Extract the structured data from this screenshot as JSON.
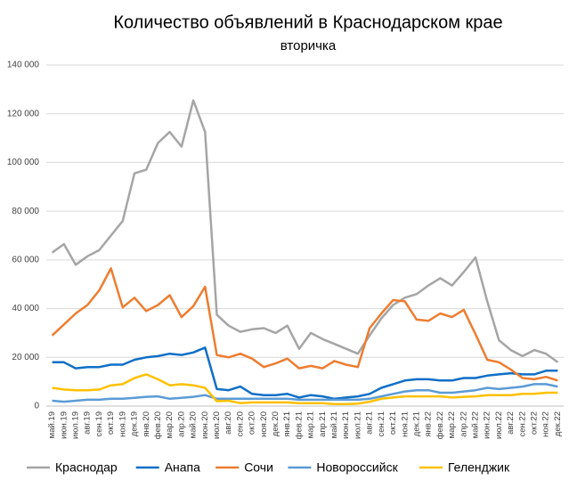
{
  "chart_data": {
    "type": "line",
    "title": "Количество объявлений в Краснодарском крае",
    "subtitle": "вторичка",
    "categories": [
      "май.19",
      "июн.19",
      "июл.19",
      "авг.19",
      "сен.19",
      "окт.19",
      "ноя.19",
      "дек.19",
      "янв.20",
      "фев.20",
      "мар.20",
      "апр.20",
      "май.20",
      "июн.20",
      "июл.20",
      "авг.20",
      "сен.20",
      "окт.20",
      "ноя.20",
      "дек.20",
      "янв.21",
      "фев.21",
      "мар.21",
      "апр.21",
      "май.21",
      "июн.21",
      "июл.21",
      "авг.21",
      "сен.21",
      "окт.21",
      "ноя.21",
      "дек.21",
      "янв.22",
      "фев.22",
      "мар.22",
      "апр.22",
      "май.22",
      "июн.22",
      "июл.22",
      "авг.22",
      "сен.22",
      "окт.22",
      "ноя.22",
      "дек.22"
    ],
    "series": [
      {
        "name": "Краснодар",
        "color": "#a5a5a5",
        "values": [
          63000,
          66500,
          58000,
          61500,
          64000,
          70000,
          76000,
          95500,
          97000,
          108000,
          112500,
          106500,
          125500,
          112500,
          37500,
          33000,
          30500,
          31500,
          32000,
          30000,
          33000,
          23500,
          30000,
          27500,
          25500,
          23500,
          21500,
          29000,
          36000,
          41500,
          44500,
          46000,
          49500,
          52500,
          49500,
          55000,
          61000,
          43000,
          27000,
          23000,
          20500,
          23000,
          21500,
          18000
        ]
      },
      {
        "name": "Анапа",
        "color": "#0f6fc6",
        "values": [
          18000,
          18000,
          15500,
          16000,
          16000,
          17000,
          17000,
          19000,
          20000,
          20500,
          21500,
          21000,
          22000,
          24000,
          7000,
          6500,
          8000,
          5000,
          4500,
          4500,
          5000,
          3500,
          4500,
          4000,
          3000,
          3500,
          4000,
          5000,
          7500,
          9000,
          10500,
          11000,
          11000,
          10500,
          10500,
          11500,
          11500,
          12500,
          13000,
          13500,
          13000,
          13000,
          14500,
          14500
        ]
      },
      {
        "name": "Сочи",
        "color": "#ed7d31",
        "values": [
          29000,
          33500,
          38000,
          41500,
          47500,
          56500,
          40500,
          44500,
          39000,
          41500,
          45500,
          36500,
          41000,
          49000,
          21000,
          20000,
          21500,
          19500,
          16000,
          17500,
          19500,
          15500,
          16500,
          15500,
          18500,
          17000,
          16000,
          32000,
          38000,
          43500,
          43000,
          35500,
          35000,
          38000,
          36500,
          39500,
          29500,
          19000,
          18000,
          15000,
          11500,
          11000,
          12000,
          10500
        ]
      },
      {
        "name": "Новороссийск",
        "color": "#5b9bd5",
        "values": [
          2200,
          1800,
          2200,
          2600,
          2600,
          3000,
          3000,
          3400,
          3800,
          4000,
          3000,
          3400,
          3800,
          4500,
          3000,
          3000,
          3000,
          3000,
          3000,
          3000,
          3000,
          2600,
          2600,
          2600,
          2600,
          2600,
          2600,
          3000,
          4000,
          5000,
          6000,
          6500,
          6500,
          5500,
          5500,
          6000,
          6500,
          7500,
          7000,
          7500,
          8000,
          9000,
          9000,
          8000
        ]
      },
      {
        "name": "Геленджик",
        "color": "#ffc000",
        "values": [
          7500,
          6800,
          6500,
          6500,
          6800,
          8500,
          9000,
          11500,
          13000,
          11000,
          8500,
          9000,
          8500,
          7500,
          2000,
          2200,
          1200,
          1500,
          1500,
          1500,
          1500,
          1200,
          1200,
          1200,
          800,
          800,
          1000,
          1800,
          3000,
          3500,
          4000,
          4000,
          4000,
          4000,
          3500,
          3800,
          4000,
          4500,
          4500,
          4500,
          5000,
          5000,
          5500,
          5500
        ]
      }
    ],
    "ylim": [
      0,
      140000
    ],
    "yticks": [
      0,
      {
        "value": 20000,
        "label": "20 000"
      },
      {
        "value": 40000,
        "label": "40 000"
      },
      {
        "value": 60000,
        "label": "60 000"
      },
      {
        "value": 80000,
        "label": "80 000"
      },
      {
        "value": 100000,
        "label": "100 000"
      },
      {
        "value": 120000,
        "label": "120 000"
      },
      {
        "value": 140000,
        "label": "140 000"
      }
    ],
    "grid": true,
    "legend": "bottom"
  }
}
